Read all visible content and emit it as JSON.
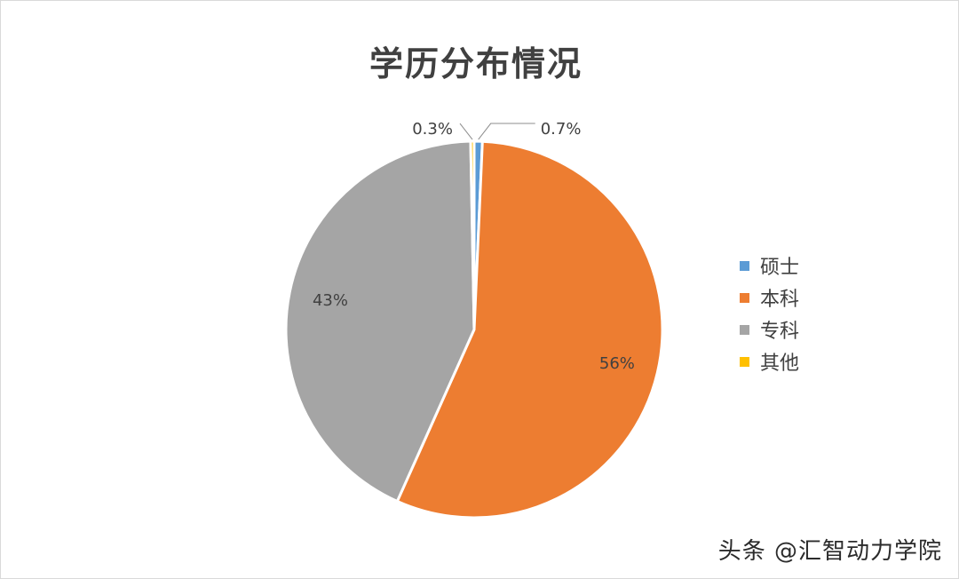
{
  "chart_data": {
    "type": "pie",
    "title": "学历分布情况",
    "categories": [
      "硕士",
      "本科",
      "专科",
      "其他"
    ],
    "values": [
      0.7,
      56,
      43,
      0.3
    ],
    "data_labels": [
      "0.7%",
      "56%",
      "43%",
      "0.3%"
    ],
    "colors": [
      "#5B9BD5",
      "#ED7D31",
      "#A5A5A5",
      "#FFC000"
    ],
    "legend": {
      "placement": "right",
      "items": [
        "硕士",
        "本科",
        "专科",
        "其他"
      ]
    }
  },
  "watermark": "头条 @汇智动力学院"
}
